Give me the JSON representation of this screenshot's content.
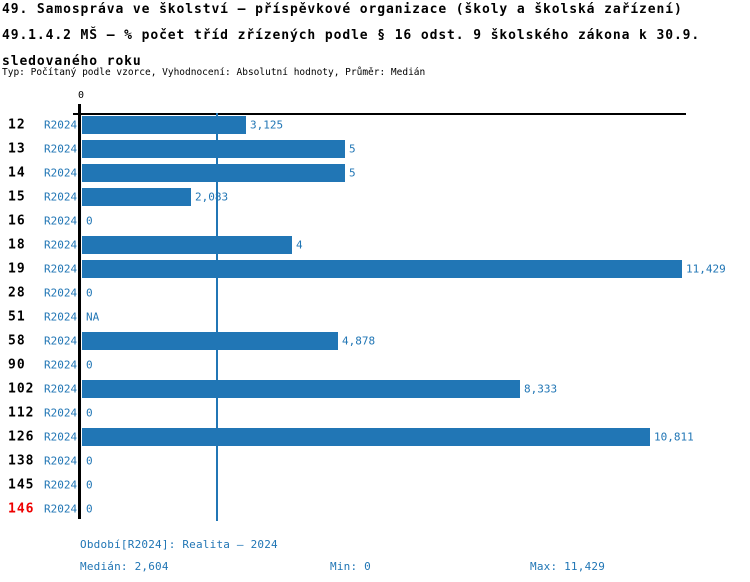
{
  "header": {
    "title_line1": "49. Samospráva ve školství – příspěvkové organizace (školy a školská zařízení)",
    "title_line2": "49.1.4.2 MŠ – % počet tříd zřízených podle § 16 odst. 9 školského zákona k 30.9.",
    "title_line3": "sledovaného roku",
    "meta": "Typ: Počítaný podle vzorce, Vyhodnocení: Absolutní hodnoty, Průměr: Medián"
  },
  "chart_data": {
    "type": "bar",
    "orientation": "horizontal",
    "title": "49.1.4.2 MŠ – % počet tříd zřízených podle § 16 odst. 9 školského zákona k 30.9. sledovaného roku",
    "axis_zero_label": "0",
    "categories": [
      "12",
      "13",
      "14",
      "15",
      "16",
      "18",
      "19",
      "28",
      "51",
      "58",
      "90",
      "102",
      "112",
      "126",
      "138",
      "145",
      "146"
    ],
    "series_label": "R2024",
    "values": [
      3.125,
      5,
      5,
      2.083,
      0,
      4,
      11.429,
      0,
      null,
      4.878,
      0,
      8.333,
      0,
      10.811,
      0,
      0,
      0
    ],
    "value_labels": [
      "3,125",
      "5",
      "5",
      "2,083",
      "0",
      "4",
      "11,429",
      "0",
      "NA",
      "4,878",
      "0",
      "8,333",
      "0",
      "10,811",
      "0",
      "0",
      "0"
    ],
    "highlighted_category": "146",
    "xlim": [
      0,
      11.5
    ],
    "median": 2.604,
    "min": 0,
    "max": 11.429,
    "grid": false,
    "legend_position": "none"
  },
  "colors": {
    "bar": "#2176b5",
    "blue_text": "#2176b5",
    "highlight_red": "#ee0000",
    "axis": "#000000"
  },
  "footer": {
    "period": "Období[R2024]: Realita – 2024",
    "median": "Medián: 2,604",
    "min": "Min: 0",
    "max": "Max: 11,429"
  }
}
